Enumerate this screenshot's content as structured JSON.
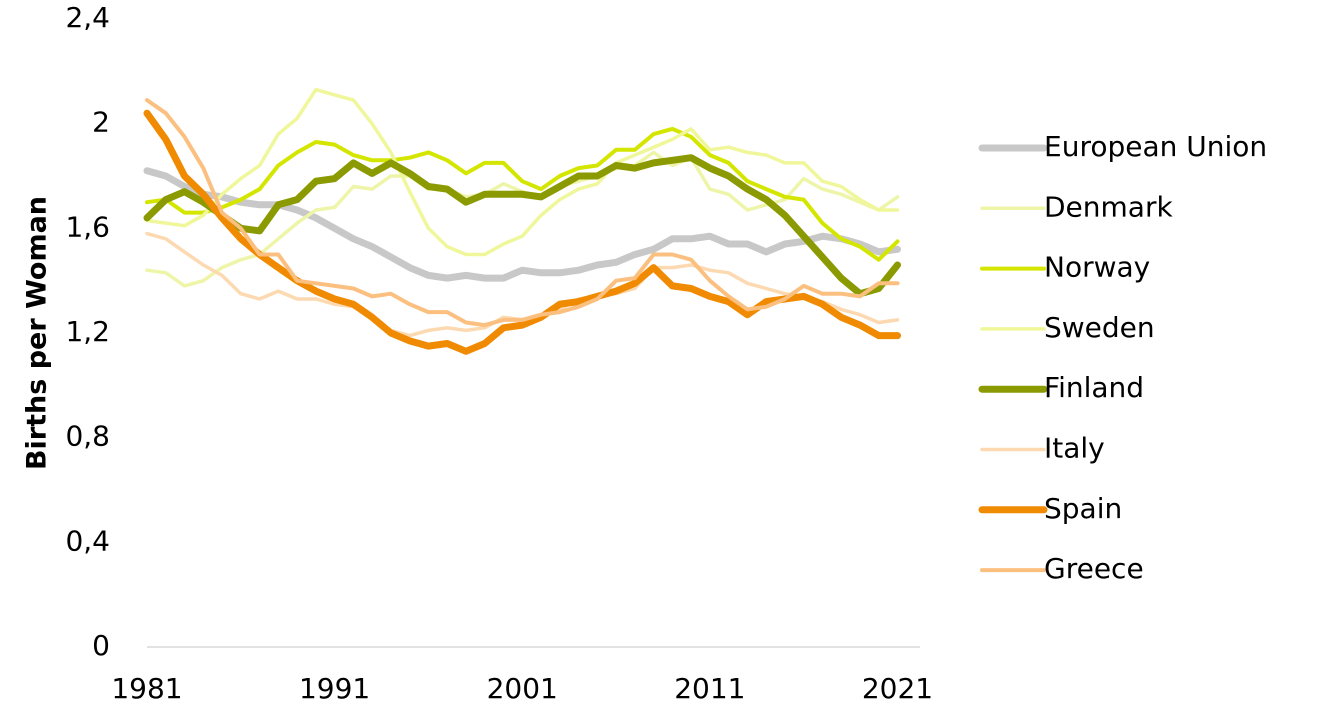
{
  "chart_data": {
    "type": "line",
    "y_label": "Births per Woman",
    "x": [
      1981,
      1982,
      1983,
      1984,
      1985,
      1986,
      1987,
      1988,
      1989,
      1990,
      1991,
      1992,
      1993,
      1994,
      1995,
      1996,
      1997,
      1998,
      1999,
      2000,
      2001,
      2002,
      2003,
      2004,
      2005,
      2006,
      2007,
      2008,
      2009,
      2010,
      2011,
      2012,
      2013,
      2014,
      2015,
      2016,
      2017,
      2018,
      2019,
      2020,
      2021
    ],
    "xlim": [
      1981,
      2022.2
    ],
    "xticks": [
      1981,
      1991,
      2001,
      2011,
      2021
    ],
    "ylim": [
      0,
      2.4
    ],
    "yticks": [
      0,
      {
        "value": 0.4,
        "label": "0,4"
      },
      {
        "value": 0.8,
        "label": "0,8"
      },
      {
        "value": 1.2,
        "label": "1,2"
      },
      {
        "value": 1.6,
        "label": "1,6"
      },
      2,
      {
        "value": 2.4,
        "label": "2,4"
      }
    ],
    "grid": false,
    "legend": "right",
    "series": [
      {
        "name": "European Union",
        "color": "#c8c8c8",
        "line_width": 7,
        "values": [
          1.82,
          1.8,
          1.76,
          1.73,
          1.72,
          1.7,
          1.69,
          1.69,
          1.67,
          1.64,
          1.6,
          1.56,
          1.53,
          1.49,
          1.45,
          1.42,
          1.41,
          1.42,
          1.41,
          1.41,
          1.44,
          1.43,
          1.43,
          1.44,
          1.46,
          1.47,
          1.5,
          1.52,
          1.56,
          1.56,
          1.57,
          1.54,
          1.54,
          1.51,
          1.54,
          1.55,
          1.57,
          1.56,
          1.54,
          1.51,
          1.52
        ]
      },
      {
        "name": "Denmark",
        "color": "#eef5a8",
        "line_width": 3.5,
        "values": [
          1.44,
          1.43,
          1.38,
          1.4,
          1.45,
          1.48,
          1.5,
          1.56,
          1.62,
          1.67,
          1.68,
          1.76,
          1.75,
          1.8,
          1.8,
          1.75,
          1.75,
          1.72,
          1.73,
          1.77,
          1.74,
          1.72,
          1.76,
          1.78,
          1.8,
          1.83,
          1.84,
          1.89,
          1.84,
          1.87,
          1.75,
          1.73,
          1.67,
          1.69,
          1.71,
          1.79,
          1.75,
          1.73,
          1.7,
          1.67,
          1.72
        ]
      },
      {
        "name": "Norway",
        "color": "#d4e600",
        "line_width": 4,
        "values": [
          1.7,
          1.71,
          1.66,
          1.66,
          1.68,
          1.71,
          1.75,
          1.84,
          1.89,
          1.93,
          1.92,
          1.88,
          1.86,
          1.86,
          1.87,
          1.89,
          1.86,
          1.81,
          1.85,
          1.85,
          1.78,
          1.75,
          1.8,
          1.83,
          1.84,
          1.9,
          1.9,
          1.96,
          1.98,
          1.95,
          1.88,
          1.85,
          1.78,
          1.75,
          1.72,
          1.71,
          1.62,
          1.56,
          1.53,
          1.48,
          1.55
        ]
      },
      {
        "name": "Sweden",
        "color": "#eff79a",
        "line_width": 3.5,
        "values": [
          1.63,
          1.62,
          1.61,
          1.65,
          1.73,
          1.79,
          1.84,
          1.96,
          2.02,
          2.13,
          2.11,
          2.09,
          2.0,
          1.89,
          1.74,
          1.6,
          1.53,
          1.5,
          1.5,
          1.54,
          1.57,
          1.65,
          1.71,
          1.75,
          1.77,
          1.85,
          1.88,
          1.91,
          1.94,
          1.98,
          1.9,
          1.91,
          1.89,
          1.88,
          1.85,
          1.85,
          1.78,
          1.76,
          1.71,
          1.67,
          1.67
        ]
      },
      {
        "name": "Finland",
        "color": "#8a9a00",
        "line_width": 7,
        "values": [
          1.64,
          1.71,
          1.74,
          1.7,
          1.65,
          1.6,
          1.59,
          1.69,
          1.71,
          1.78,
          1.79,
          1.85,
          1.81,
          1.85,
          1.81,
          1.76,
          1.75,
          1.7,
          1.73,
          1.73,
          1.73,
          1.72,
          1.76,
          1.8,
          1.8,
          1.84,
          1.83,
          1.85,
          1.86,
          1.87,
          1.83,
          1.8,
          1.75,
          1.71,
          1.65,
          1.57,
          1.49,
          1.41,
          1.35,
          1.37,
          1.46
        ]
      },
      {
        "name": "Italy",
        "color": "#fcd9b0",
        "line_width": 3.5,
        "values": [
          1.58,
          1.56,
          1.51,
          1.46,
          1.42,
          1.35,
          1.33,
          1.36,
          1.33,
          1.33,
          1.31,
          1.3,
          1.26,
          1.21,
          1.19,
          1.21,
          1.22,
          1.21,
          1.22,
          1.26,
          1.25,
          1.27,
          1.29,
          1.33,
          1.34,
          1.35,
          1.37,
          1.45,
          1.45,
          1.46,
          1.44,
          1.43,
          1.39,
          1.37,
          1.35,
          1.34,
          1.32,
          1.29,
          1.27,
          1.24,
          1.25
        ]
      },
      {
        "name": "Spain",
        "color": "#f08a00",
        "line_width": 7,
        "values": [
          2.04,
          1.94,
          1.8,
          1.73,
          1.64,
          1.56,
          1.5,
          1.45,
          1.4,
          1.36,
          1.33,
          1.31,
          1.26,
          1.2,
          1.17,
          1.15,
          1.16,
          1.13,
          1.16,
          1.22,
          1.23,
          1.26,
          1.31,
          1.32,
          1.34,
          1.36,
          1.39,
          1.45,
          1.38,
          1.37,
          1.34,
          1.32,
          1.27,
          1.32,
          1.33,
          1.34,
          1.31,
          1.26,
          1.23,
          1.19,
          1.19
        ]
      },
      {
        "name": "Greece",
        "color": "#fbc080",
        "line_width": 4,
        "values": [
          2.09,
          2.04,
          1.95,
          1.83,
          1.66,
          1.6,
          1.5,
          1.5,
          1.4,
          1.39,
          1.38,
          1.37,
          1.34,
          1.35,
          1.31,
          1.28,
          1.28,
          1.24,
          1.23,
          1.25,
          1.25,
          1.27,
          1.28,
          1.3,
          1.33,
          1.4,
          1.41,
          1.5,
          1.5,
          1.48,
          1.4,
          1.34,
          1.29,
          1.3,
          1.33,
          1.38,
          1.35,
          1.35,
          1.34,
          1.39,
          1.39
        ]
      }
    ]
  }
}
